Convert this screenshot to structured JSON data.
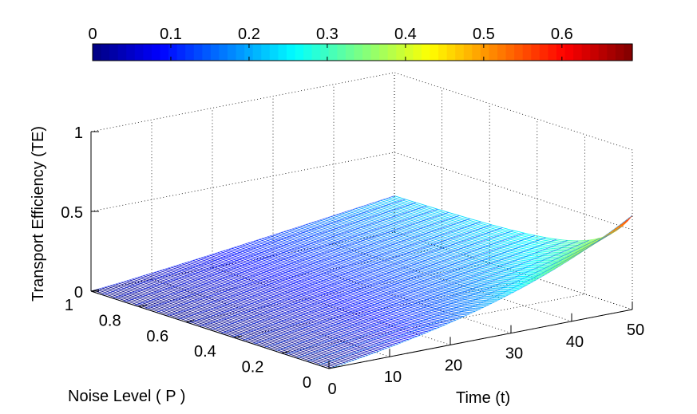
{
  "chart_data": {
    "type": "surface",
    "title": "",
    "zlabel": "Transport Efficiency (TE)",
    "xlabel": "Time (t)",
    "ylabel": "Noise Level ( P )",
    "x_ticks": [
      "0",
      "10",
      "20",
      "30",
      "40",
      "50"
    ],
    "y_ticks": [
      "0",
      "0.2",
      "0.4",
      "0.6",
      "0.8",
      "1"
    ],
    "z_ticks": [
      "0",
      "0.5",
      "1"
    ],
    "colorbar_ticks": [
      "0",
      "0.1",
      "0.2",
      "0.3",
      "0.4",
      "0.5",
      "0.6"
    ],
    "xlim": [
      0,
      50
    ],
    "ylim": [
      0,
      1
    ],
    "zlim": [
      0,
      1
    ],
    "clim": [
      0,
      0.69
    ],
    "colormap": "jet",
    "grid": true,
    "surface_samples": [
      {
        "x": 50,
        "y": 0,
        "z": 0.58
      },
      {
        "x": 50,
        "y": 0.5,
        "z": 0.28
      },
      {
        "x": 50,
        "y": 1,
        "z": 0.22
      },
      {
        "x": 25,
        "y": 0,
        "z": 0.15
      },
      {
        "x": 25,
        "y": 1,
        "z": 0.1
      },
      {
        "x": 0,
        "y": 0,
        "z": 0
      },
      {
        "x": 0,
        "y": 1,
        "z": 0
      }
    ]
  }
}
